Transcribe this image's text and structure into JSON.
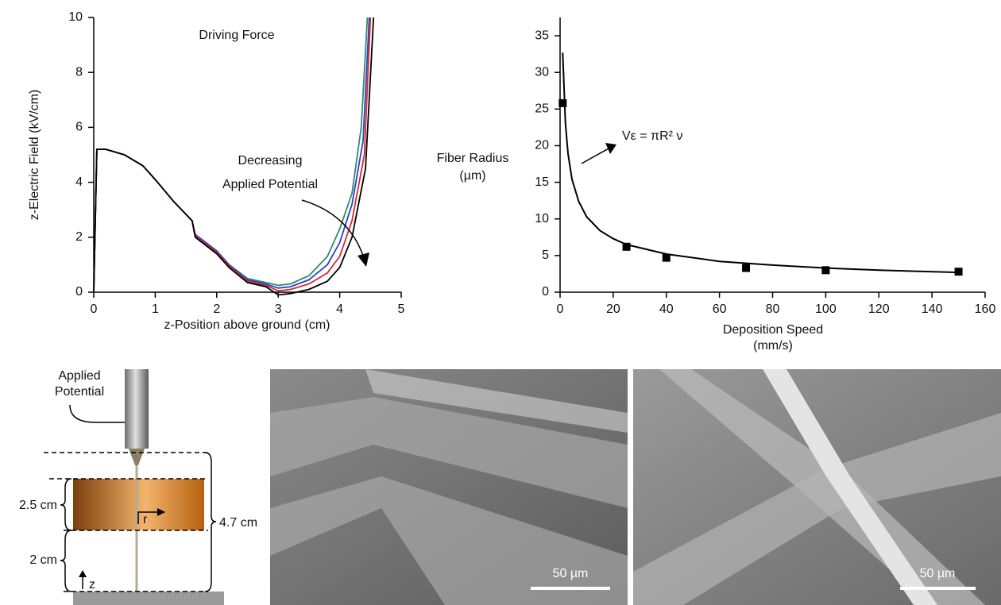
{
  "chart_data": [
    {
      "type": "line",
      "title": "Driving Force",
      "xlabel": "z-Position above ground (cm)",
      "ylabel": "z-Electric Field (kV/cm)",
      "annotation": [
        "Decreasing",
        "Applied Potential"
      ],
      "xlim": [
        0,
        5
      ],
      "ylim": [
        0,
        10
      ],
      "xticks": [
        0,
        1,
        2,
        3,
        4,
        5
      ],
      "yticks": [
        0,
        2,
        4,
        6,
        8,
        10
      ],
      "series": [
        {
          "color": "#2e8b6e",
          "x": [
            0,
            0.05,
            0.2,
            0.5,
            0.8,
            1.0,
            1.3,
            1.6,
            1.65,
            2.0,
            2.2,
            2.5,
            2.8,
            3.0,
            3.2,
            3.5,
            3.8,
            4.0,
            4.2,
            4.35,
            4.45
          ],
          "values": [
            0,
            5.2,
            5.2,
            5.0,
            4.6,
            4.1,
            3.3,
            2.6,
            2.1,
            1.5,
            1.0,
            0.5,
            0.35,
            0.25,
            0.3,
            0.6,
            1.3,
            2.3,
            3.6,
            6,
            10
          ]
        },
        {
          "color": "#2b3fc7",
          "x": [
            0,
            0.05,
            0.2,
            0.5,
            0.8,
            1.0,
            1.3,
            1.6,
            1.65,
            2.0,
            2.2,
            2.5,
            2.8,
            3.0,
            3.2,
            3.5,
            3.8,
            4.0,
            4.2,
            4.38,
            4.48
          ],
          "values": [
            0,
            5.2,
            5.2,
            5.0,
            4.6,
            4.1,
            3.3,
            2.6,
            2.1,
            1.5,
            1.0,
            0.45,
            0.3,
            0.15,
            0.2,
            0.45,
            1.0,
            1.8,
            3.2,
            5.5,
            10
          ]
        },
        {
          "color": "#d42a2a",
          "x": [
            0,
            0.05,
            0.2,
            0.5,
            0.8,
            1.0,
            1.3,
            1.6,
            1.65,
            2.0,
            2.2,
            2.5,
            2.8,
            3.0,
            3.2,
            3.5,
            3.8,
            4.0,
            4.2,
            4.4,
            4.5
          ],
          "values": [
            0,
            5.2,
            5.2,
            5.0,
            4.6,
            4.1,
            3.3,
            2.6,
            2.05,
            1.45,
            0.95,
            0.4,
            0.25,
            0.05,
            0.1,
            0.3,
            0.7,
            1.3,
            2.6,
            5,
            10
          ]
        },
        {
          "color": "#000000",
          "x": [
            0,
            0.05,
            0.2,
            0.5,
            0.8,
            1.0,
            1.3,
            1.6,
            1.65,
            2.0,
            2.2,
            2.5,
            2.8,
            3.0,
            3.2,
            3.5,
            3.8,
            4.0,
            4.2,
            4.42,
            4.55
          ],
          "values": [
            0,
            5.2,
            5.2,
            5.0,
            4.6,
            4.1,
            3.3,
            2.6,
            2.0,
            1.4,
            0.9,
            0.35,
            0.2,
            -0.1,
            -0.05,
            0.1,
            0.4,
            0.9,
            2.0,
            4.5,
            10
          ]
        }
      ]
    },
    {
      "type": "scatter",
      "xlabel": [
        "Deposition Speed",
        "(mm/s)"
      ],
      "ylabel": [
        "Fiber Radius",
        "(µm)"
      ],
      "annotation": "Vε = πR² ν",
      "xlim": [
        0,
        160
      ],
      "ylim": [
        0,
        37.5
      ],
      "xticks": [
        0,
        20,
        40,
        60,
        80,
        100,
        120,
        140,
        160
      ],
      "yticks": [
        0,
        5,
        10,
        15,
        20,
        25,
        30,
        35
      ],
      "series": [
        {
          "color": "#000000",
          "x": [
            1,
            25,
            40,
            70,
            100,
            150
          ],
          "values": [
            25.8,
            6.2,
            4.7,
            3.3,
            3.0,
            2.8
          ]
        }
      ],
      "fit": {
        "color": "#000000",
        "x": [
          1,
          2,
          3,
          4.5,
          7,
          10,
          15,
          20,
          25,
          40,
          60,
          80,
          100,
          120,
          150
        ],
        "values": [
          32.7,
          23.1,
          18.9,
          15.4,
          12.4,
          10.3,
          8.4,
          7.3,
          6.5,
          5.2,
          4.2,
          3.7,
          3.3,
          3.0,
          2.7
        ]
      }
    }
  ],
  "diagram": {
    "potential": [
      "Applied",
      "Potential"
    ],
    "gap_top": "2.5 cm",
    "gap_bottom": "2 cm",
    "total": "4.7 cm",
    "r_axis": "r",
    "z_axis": "z"
  },
  "images": [
    {
      "scale_bar": "50 µm"
    },
    {
      "scale_bar": "50 µm"
    }
  ]
}
